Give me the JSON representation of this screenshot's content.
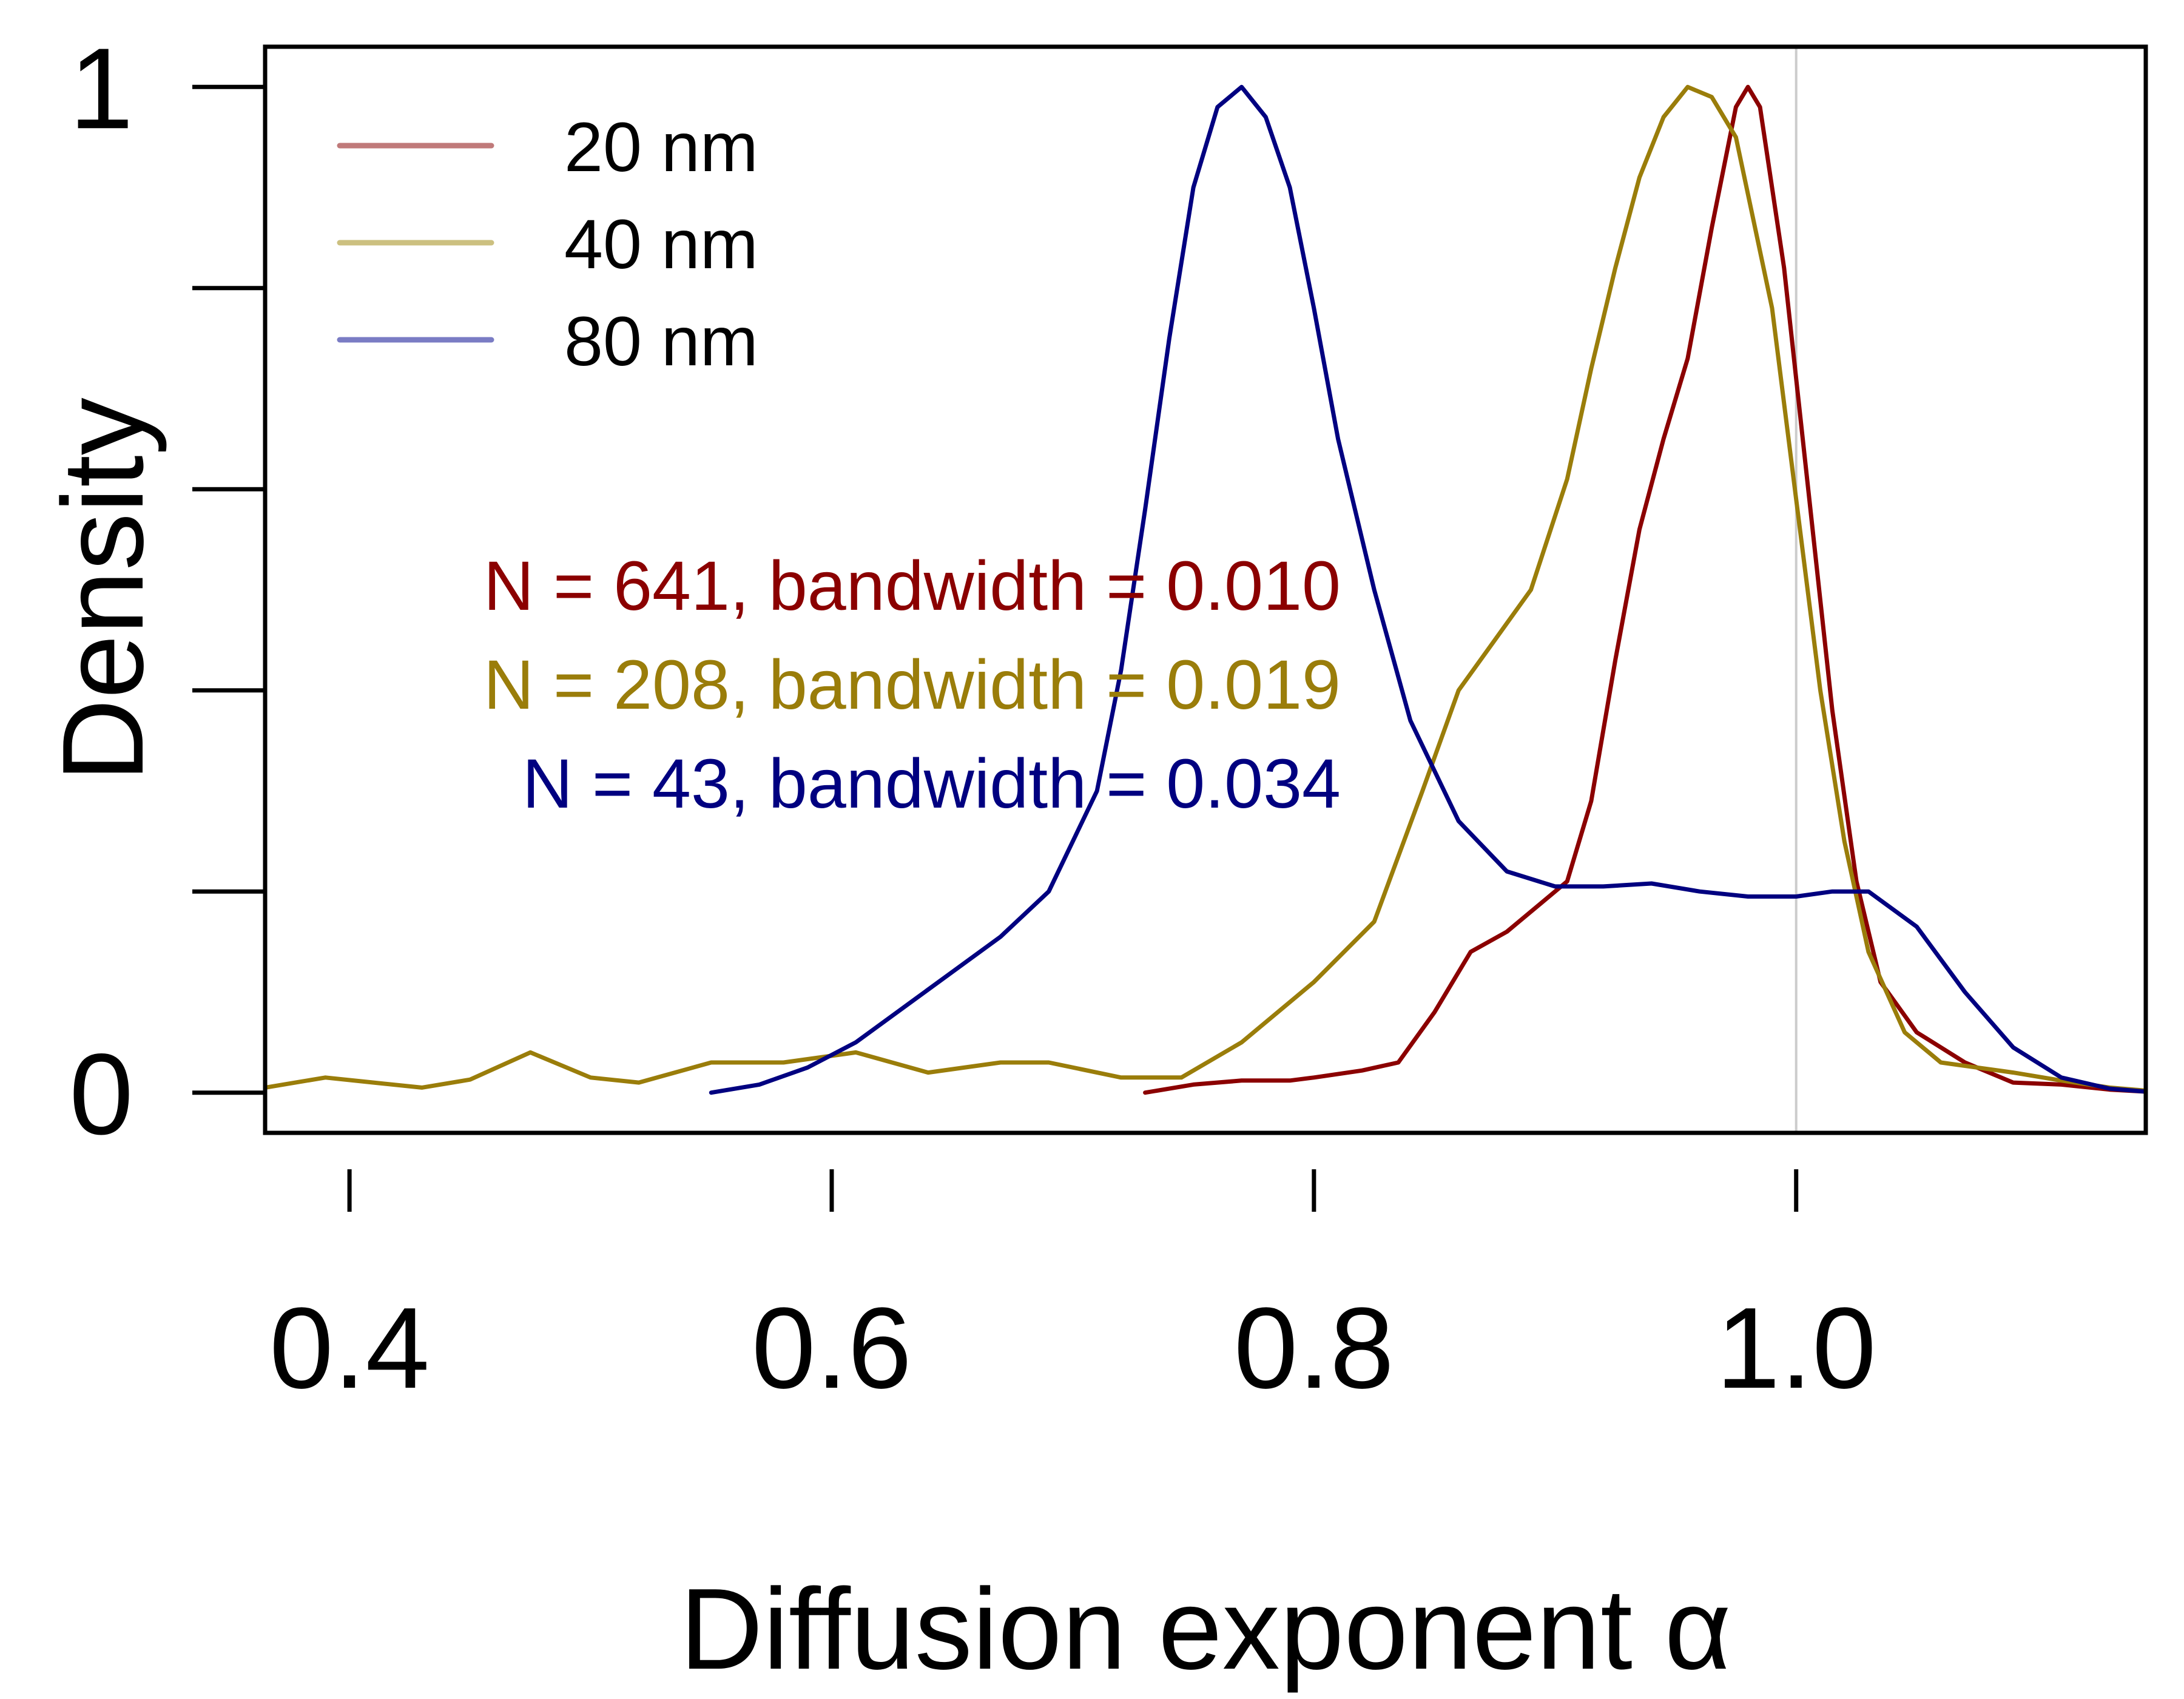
{
  "chart_data": {
    "type": "line",
    "title": "",
    "xlabel": "Diffusion exponent α",
    "ylabel": "Density",
    "xlim": [
      0.365,
      1.145
    ],
    "ylim": [
      -0.04,
      1.04
    ],
    "x_ticks": [
      {
        "value": 0.4,
        "label": "0.4"
      },
      {
        "value": 0.6,
        "label": "0.6"
      },
      {
        "value": 0.8,
        "label": "0.8"
      },
      {
        "value": 1.0,
        "label": "1.0"
      }
    ],
    "y_ticks": [
      {
        "value": 0,
        "label": "0"
      },
      {
        "value": 0.2,
        "label": ""
      },
      {
        "value": 0.4,
        "label": ""
      },
      {
        "value": 0.6,
        "label": ""
      },
      {
        "value": 0.8,
        "label": ""
      },
      {
        "value": 1,
        "label": "1"
      }
    ],
    "reference_line_x": 1.0,
    "reference_line_color": "#cccccc",
    "legend_position": "top-left",
    "series": [
      {
        "name": "20 nm",
        "color": "#8b0000",
        "legend_color": "#c07a7a",
        "annotation": "N = 641, bandwidth = 0.010",
        "x": [
          0.73,
          0.75,
          0.77,
          0.79,
          0.8,
          0.82,
          0.835,
          0.85,
          0.865,
          0.88,
          0.895,
          0.905,
          0.915,
          0.925,
          0.935,
          0.945,
          0.955,
          0.965,
          0.975,
          0.98,
          0.985,
          0.995,
          1.005,
          1.015,
          1.025,
          1.035,
          1.05,
          1.07,
          1.09,
          1.11,
          1.13,
          1.145
        ],
        "y": [
          0.0,
          0.008,
          0.012,
          0.012,
          0.015,
          0.022,
          0.03,
          0.08,
          0.14,
          0.16,
          0.19,
          0.21,
          0.29,
          0.43,
          0.56,
          0.65,
          0.73,
          0.86,
          0.98,
          1.0,
          0.98,
          0.82,
          0.6,
          0.38,
          0.21,
          0.11,
          0.06,
          0.03,
          0.01,
          0.008,
          0.003,
          0.001
        ]
      },
      {
        "name": "40 nm",
        "color": "#9a7d0a",
        "legend_color": "#ccc080",
        "annotation": "N = 208, bandwidth = 0.019",
        "x": [
          0.365,
          0.39,
          0.41,
          0.43,
          0.45,
          0.475,
          0.5,
          0.52,
          0.55,
          0.58,
          0.61,
          0.64,
          0.67,
          0.69,
          0.72,
          0.745,
          0.77,
          0.8,
          0.825,
          0.845,
          0.86,
          0.875,
          0.89,
          0.905,
          0.915,
          0.925,
          0.935,
          0.945,
          0.955,
          0.965,
          0.975,
          0.99,
          1.0,
          1.01,
          1.02,
          1.03,
          1.045,
          1.06,
          1.075,
          1.09,
          1.11,
          1.13,
          1.145
        ],
        "y": [
          0.005,
          0.015,
          0.01,
          0.005,
          0.013,
          0.04,
          0.015,
          0.01,
          0.03,
          0.03,
          0.04,
          0.02,
          0.03,
          0.03,
          0.015,
          0.015,
          0.05,
          0.11,
          0.17,
          0.3,
          0.4,
          0.45,
          0.5,
          0.61,
          0.72,
          0.82,
          0.91,
          0.97,
          1.0,
          0.99,
          0.95,
          0.78,
          0.59,
          0.4,
          0.25,
          0.14,
          0.06,
          0.03,
          0.025,
          0.02,
          0.012,
          0.005,
          0.002
        ]
      },
      {
        "name": "80 nm",
        "color": "#000080",
        "legend_color": "#7a7cc4",
        "annotation": "N = 43, bandwidth = 0.034",
        "x": [
          0.55,
          0.57,
          0.59,
          0.61,
          0.63,
          0.65,
          0.67,
          0.69,
          0.71,
          0.72,
          0.73,
          0.74,
          0.75,
          0.76,
          0.77,
          0.78,
          0.79,
          0.8,
          0.81,
          0.825,
          0.84,
          0.86,
          0.88,
          0.9,
          0.92,
          0.94,
          0.96,
          0.98,
          1.0,
          1.015,
          1.03,
          1.05,
          1.07,
          1.09,
          1.11,
          1.13,
          1.145
        ],
        "y": [
          0.0,
          0.008,
          0.025,
          0.05,
          0.085,
          0.12,
          0.155,
          0.2,
          0.3,
          0.42,
          0.58,
          0.75,
          0.9,
          0.98,
          1.0,
          0.97,
          0.9,
          0.78,
          0.65,
          0.5,
          0.37,
          0.27,
          0.22,
          0.205,
          0.205,
          0.208,
          0.2,
          0.195,
          0.195,
          0.2,
          0.2,
          0.165,
          0.1,
          0.045,
          0.015,
          0.004,
          0.001
        ]
      }
    ]
  }
}
